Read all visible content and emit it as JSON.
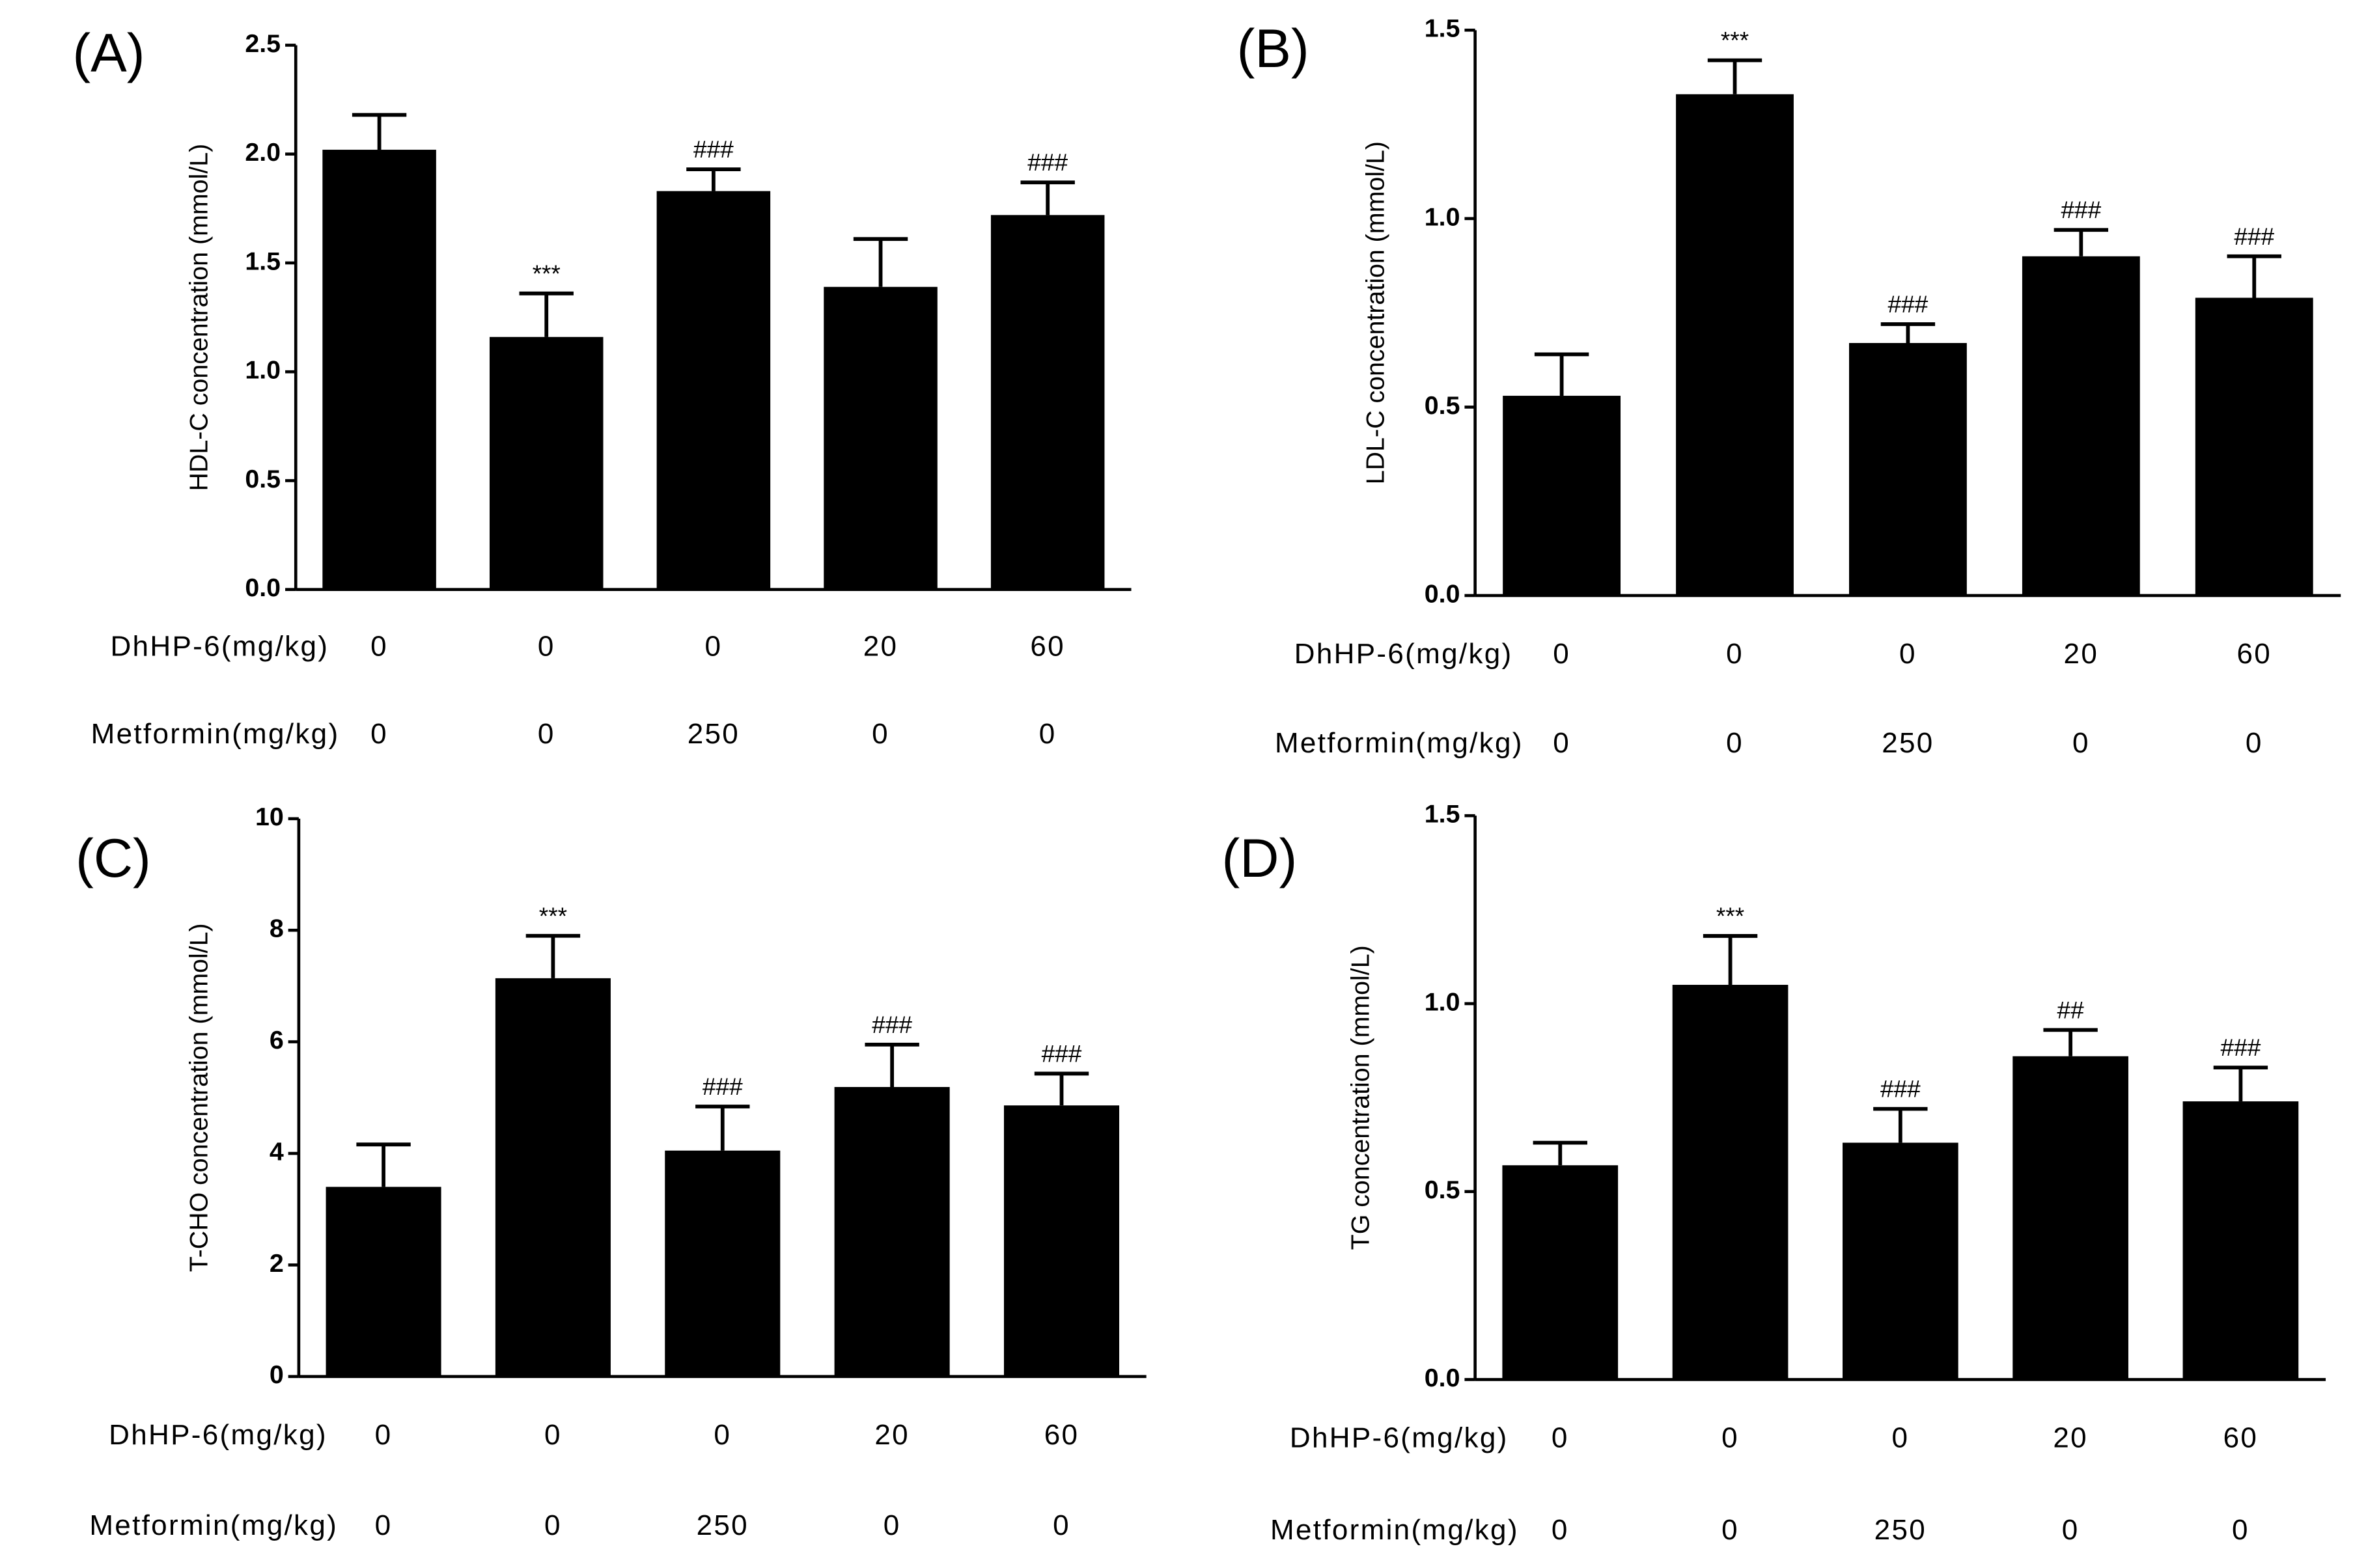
{
  "chart_data": [
    {
      "type": "bar",
      "panel": "(A)",
      "ylabel": "HDL-C concentration (mmol/L)",
      "color": "#000000",
      "ylim": [
        0,
        2.5
      ],
      "yticks": [
        {
          "value": 0,
          "label": "0.0"
        },
        0.5,
        {
          "value": 1,
          "label": "1.0"
        },
        1.5,
        {
          "value": 2,
          "label": "2.0"
        },
        2.5
      ],
      "values": [
        2.02,
        1.16,
        1.83,
        1.39,
        1.72
      ],
      "errors": [
        0.16,
        0.2,
        0.1,
        0.22,
        0.15
      ],
      "annotations": [
        null,
        "***",
        "###",
        null,
        "###"
      ],
      "dose_rows": [
        {
          "label": "DhHP-6(mg/kg)",
          "values": [
            0,
            0,
            0,
            20,
            60
          ]
        },
        {
          "label": "Metformin(mg/kg)",
          "values": [
            0,
            0,
            250,
            0,
            0
          ]
        }
      ]
    },
    {
      "type": "bar",
      "panel": "(B)",
      "ylabel": "LDL-C concentration (mmol/L)",
      "color": "#000000",
      "ylim": [
        0,
        1.5
      ],
      "yticks": [
        {
          "value": 0,
          "label": "0.0"
        },
        0.5,
        {
          "value": 1,
          "label": "1.0"
        },
        1.5
      ],
      "values": [
        0.53,
        1.33,
        0.67,
        0.9,
        0.79
      ],
      "errors": [
        0.11,
        0.09,
        0.05,
        0.07,
        0.11
      ],
      "annotations": [
        null,
        "***",
        "###",
        "###",
        "###"
      ],
      "dose_rows": [
        {
          "label": "DhHP-6(mg/kg)",
          "values": [
            0,
            0,
            0,
            20,
            60
          ]
        },
        {
          "label": "Metformin(mg/kg)",
          "values": [
            0,
            0,
            250,
            0,
            0
          ]
        }
      ]
    },
    {
      "type": "bar",
      "panel": "(C)",
      "ylabel": "T-CHO concentration (mmol/L)",
      "color": "#000000",
      "ylim": [
        0,
        10
      ],
      "yticks": [
        0,
        2,
        4,
        6,
        8,
        10
      ],
      "values": [
        3.4,
        7.14,
        4.05,
        5.19,
        4.86
      ],
      "errors": [
        0.76,
        0.76,
        0.79,
        0.76,
        0.57
      ],
      "annotations": [
        null,
        "***",
        "###",
        "###",
        "###"
      ],
      "dose_rows": [
        {
          "label": "DhHP-6(mg/kg)",
          "values": [
            0,
            0,
            0,
            20,
            60
          ]
        },
        {
          "label": "Metformin(mg/kg)",
          "values": [
            0,
            0,
            250,
            0,
            0
          ]
        }
      ]
    },
    {
      "type": "bar",
      "panel": "(D)",
      "ylabel": "TG concentration (mmol/L)",
      "color": "#000000",
      "ylim": [
        0,
        1.5
      ],
      "yticks": [
        {
          "value": 0,
          "label": "0.0"
        },
        0.5,
        {
          "value": 1,
          "label": "1.0"
        },
        1.5
      ],
      "values": [
        0.57,
        1.05,
        0.63,
        0.86,
        0.74
      ],
      "errors": [
        0.06,
        0.13,
        0.09,
        0.07,
        0.09
      ],
      "annotations": [
        null,
        "***",
        "###",
        "##",
        "###"
      ],
      "dose_rows": [
        {
          "label": "DhHP-6(mg/kg)",
          "values": [
            0,
            0,
            0,
            20,
            60
          ]
        },
        {
          "label": "Metformin(mg/kg)",
          "values": [
            0,
            0,
            250,
            0,
            0
          ]
        }
      ]
    }
  ]
}
